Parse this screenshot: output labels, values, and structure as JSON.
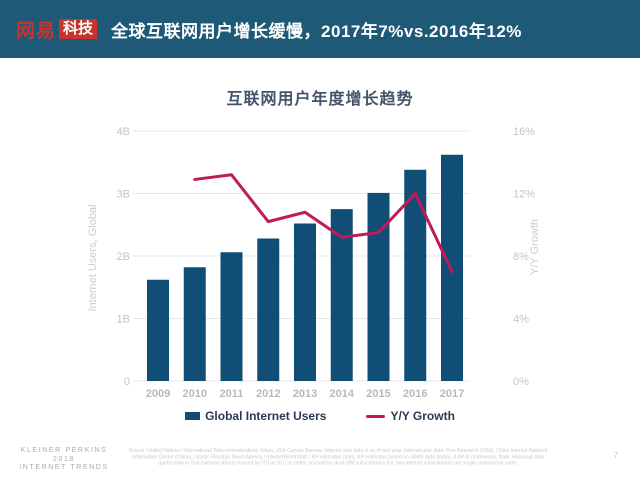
{
  "header": {
    "logo_text": "网易",
    "logo_badge": "科技",
    "title": "全球互联网用户增长缓慢，2017年7%vs.2016年12%"
  },
  "chart_data": {
    "type": "bar",
    "title": "互联网用户年度增长趋势",
    "categories": [
      "2009",
      "2010",
      "2011",
      "2012",
      "2013",
      "2014",
      "2015",
      "2016",
      "2017"
    ],
    "series": [
      {
        "name": "Global Internet Users",
        "type": "bar",
        "axis": "left",
        "unit": "billions",
        "values": [
          1.62,
          1.82,
          2.06,
          2.28,
          2.52,
          2.75,
          3.01,
          3.38,
          3.62
        ]
      },
      {
        "name": "Y/Y Growth",
        "type": "line",
        "axis": "right",
        "unit": "%",
        "x_start_index": 1,
        "values": [
          12.9,
          13.2,
          10.2,
          10.8,
          9.2,
          9.5,
          12.0,
          7.0
        ]
      }
    ],
    "left_axis": {
      "label": "Internet Users, Global",
      "min": 0,
      "max": 4,
      "ticks": [
        "0",
        "1B",
        "2B",
        "3B",
        "4B"
      ]
    },
    "right_axis": {
      "label": "Y/Y Growth",
      "min": 0,
      "max": 16,
      "ticks": [
        "0%",
        "4%",
        "8%",
        "12%",
        "16%"
      ]
    },
    "grid": true,
    "legend_position": "bottom"
  },
  "footer": {
    "brand_line1": "KLEINER PERKINS",
    "brand_line2": "2018",
    "brand_line3": "INTERNET TRENDS",
    "source_note": "Source: United Nations / International Telecommunications Union, USA Census Bureau. Internet user data is as of mid-year. Internet user data: Pew Research (USA), China Internet Network Information Center (China), Islamic Republic News Agency / InternetWorldStats / KP estimates (Iran). KP estimates based on IAMAI data (India), & APJII (Indonesia). Note: Historical data (particularly in Sub-Saharan Africa) revised by ITU in 2017 to better account for dual-SIM subscriptions (i.e. two Internet subscriptions per single smartphone user).",
    "page_number": "7"
  },
  "colors": {
    "page_bg": "#ffffff",
    "header_bg": "#1e5a78",
    "logo_red": "#c7342c",
    "bar_fill": "#114e75",
    "line_stroke": "#c01a57",
    "chart_title": "#44546a",
    "legend_text": "#2b3a52",
    "grid_line": "#e9e9e9",
    "tick_label": "#c4c4c4",
    "year_label": "#b9b9b9",
    "axis_title_label": "#cccccc",
    "footer_text": "#ababab",
    "source_text": "#c9c9c9"
  }
}
